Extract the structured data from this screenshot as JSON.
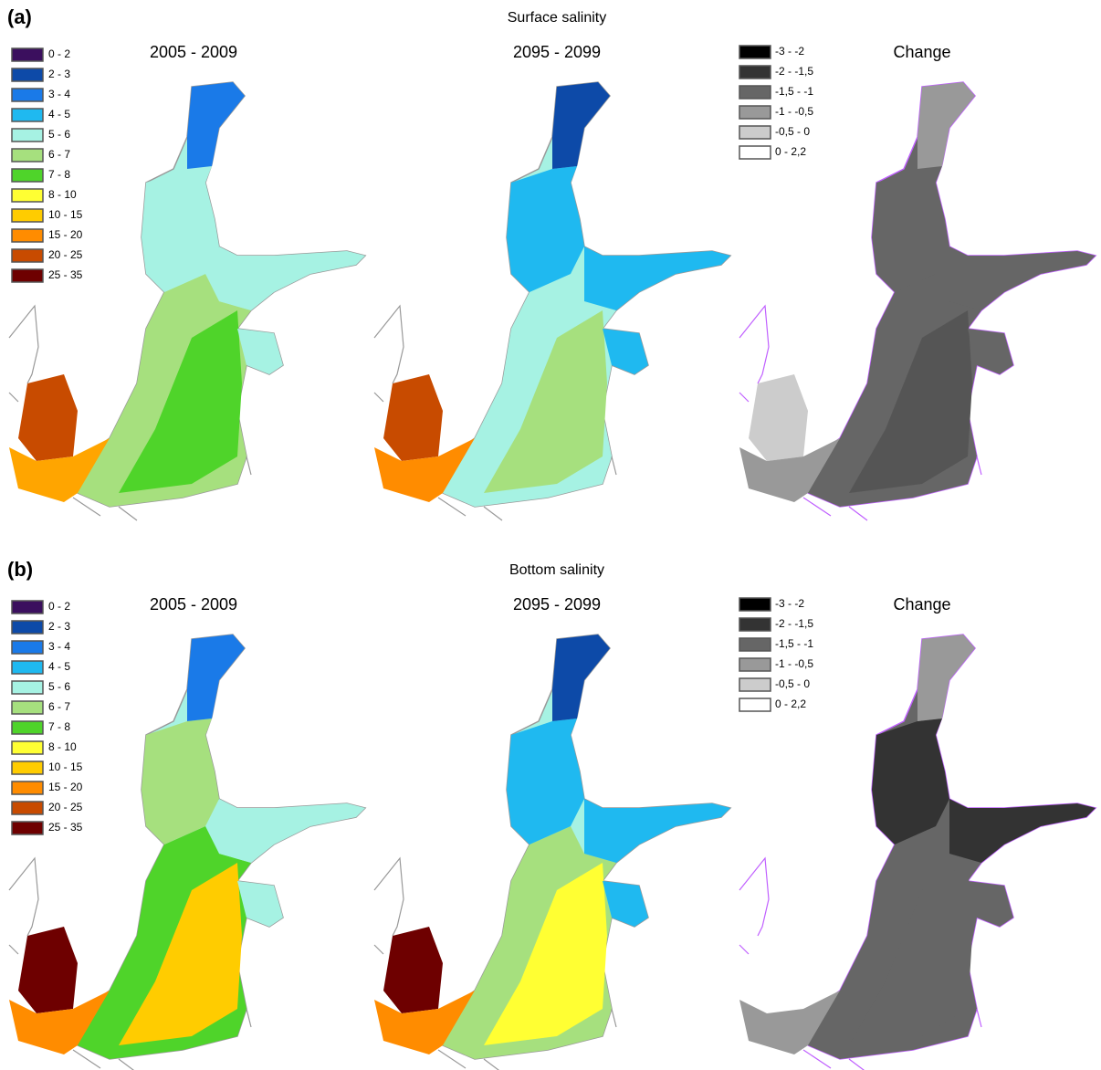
{
  "panels": [
    {
      "label": "(a)",
      "title": "Surface salinity",
      "maps": [
        {
          "title": "2005 - 2009"
        },
        {
          "title": "2095 - 2099"
        },
        {
          "title": "Change"
        }
      ],
      "salinity_legend": [
        {
          "label": "0 - 2",
          "color": "#3b0f5e"
        },
        {
          "label": "2 - 3",
          "color": "#0d4aa8"
        },
        {
          "label": "3 - 4",
          "color": "#1a7ae8"
        },
        {
          "label": "4 - 5",
          "color": "#1fb9f0"
        },
        {
          "label": "5 - 6",
          "color": "#a6f2e3"
        },
        {
          "label": "6 - 7",
          "color": "#a6e07e"
        },
        {
          "label": "7 - 8",
          "color": "#4fd42a"
        },
        {
          "label": "8 - 10",
          "color": "#ffff33"
        },
        {
          "label": "10 - 15",
          "color": "#ffcc00"
        },
        {
          "label": "15 - 20",
          "color": "#ff8c00"
        },
        {
          "label": "20 - 25",
          "color": "#c84b00"
        },
        {
          "label": "25 - 35",
          "color": "#6e0000"
        }
      ],
      "change_legend": [
        {
          "label": "-3 - -2",
          "color": "#000000"
        },
        {
          "label": "-2 - -1,5",
          "color": "#333333"
        },
        {
          "label": "-1,5 - -1",
          "color": "#666666"
        },
        {
          "label": "-1 - -0,5",
          "color": "#999999"
        },
        {
          "label": "-0,5 - 0",
          "color": "#cccccc"
        },
        {
          "label": "0 - 2,2",
          "color": "#ffffff"
        }
      ]
    },
    {
      "label": "(b)",
      "title": "Bottom salinity",
      "maps": [
        {
          "title": "2005 - 2009"
        },
        {
          "title": "2095 - 2099"
        },
        {
          "title": "Change"
        }
      ],
      "salinity_legend": [
        {
          "label": "0 - 2",
          "color": "#3b0f5e"
        },
        {
          "label": "2 - 3",
          "color": "#0d4aa8"
        },
        {
          "label": "3 - 4",
          "color": "#1a7ae8"
        },
        {
          "label": "4 - 5",
          "color": "#1fb9f0"
        },
        {
          "label": "5 - 6",
          "color": "#a6f2e3"
        },
        {
          "label": "6 - 7",
          "color": "#a6e07e"
        },
        {
          "label": "7 - 8",
          "color": "#4fd42a"
        },
        {
          "label": "8 - 10",
          "color": "#ffff33"
        },
        {
          "label": "10 - 15",
          "color": "#ffcc00"
        },
        {
          "label": "15 - 20",
          "color": "#ff8c00"
        },
        {
          "label": "20 - 25",
          "color": "#c84b00"
        },
        {
          "label": "25 - 35",
          "color": "#6e0000"
        }
      ],
      "change_legend": [
        {
          "label": "-3 - -2",
          "color": "#000000"
        },
        {
          "label": "-2 - -1,5",
          "color": "#333333"
        },
        {
          "label": "-1,5 - -1",
          "color": "#666666"
        },
        {
          "label": "-1 - -0,5",
          "color": "#999999"
        },
        {
          "label": "-0,5 - 0",
          "color": "#cccccc"
        },
        {
          "label": "0 - 2,2",
          "color": "#ffffff"
        }
      ]
    }
  ]
}
